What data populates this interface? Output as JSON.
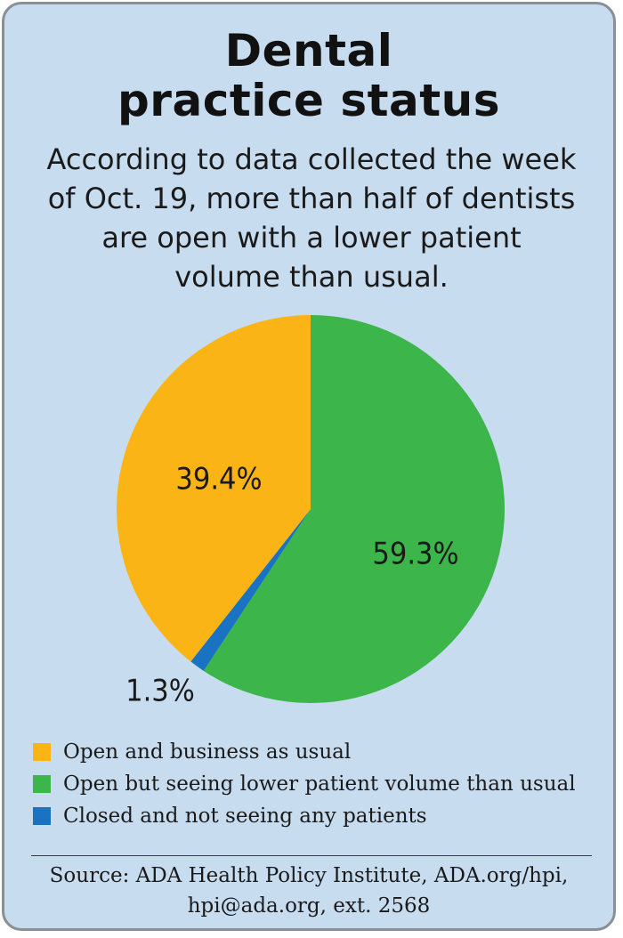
{
  "title_lines": [
    "Dental",
    "practice status"
  ],
  "subtitle_lines": [
    "According to data collected the week",
    "of Oct. 19, more than half of dentists",
    "are open with a lower patient",
    "volume than usual."
  ],
  "chart_data": {
    "type": "pie",
    "title": "Dental practice status",
    "slices": [
      {
        "label": "Open but seeing lower patient volume than usual",
        "value": 59.3,
        "display": "59.3%",
        "color": "#3cb54a"
      },
      {
        "label": "Closed and not seeing any patients",
        "value": 1.3,
        "display": "1.3%",
        "color": "#1a73c2"
      },
      {
        "label": "Open and business as usual",
        "value": 39.4,
        "display": "39.4%",
        "color": "#fbb416"
      }
    ],
    "start": "12 o'clock",
    "direction": "clockwise",
    "legend_position": "bottom"
  },
  "legend": [
    {
      "label": "Open and business as usual",
      "color": "#fbb416"
    },
    {
      "label": "Open but seeing lower patient volume than usual",
      "color": "#3cb54a"
    },
    {
      "label": "Closed and not seeing any patients",
      "color": "#1a73c2"
    }
  ],
  "source_lines": [
    "Source: ADA Health Policy Institute, ADA.org/hpi,",
    "hpi@ada.org, ext. 2568"
  ]
}
